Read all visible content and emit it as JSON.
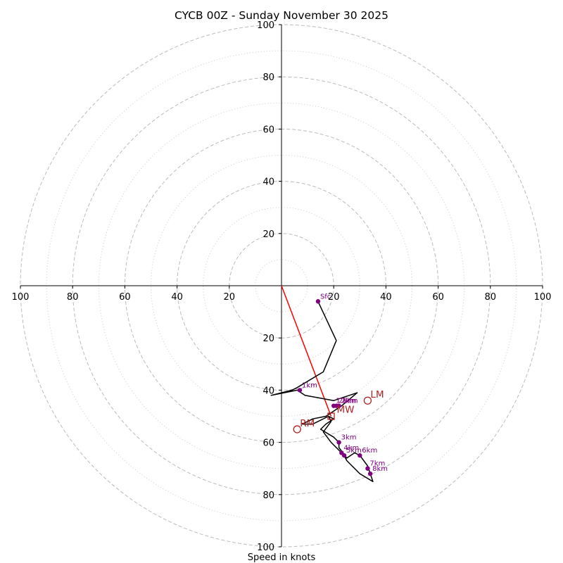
{
  "chart_data": {
    "type": "hodograph",
    "title": "CYCB 00Z - Sunday November 30 2025",
    "xlabel": "Speed in knots",
    "xlim": [
      -100,
      100
    ],
    "ylim": [
      -100,
      100
    ],
    "x_ticks": [
      "100",
      "80",
      "60",
      "40",
      "20",
      "20",
      "40",
      "60",
      "80",
      "100"
    ],
    "y_ticks": [
      "100",
      "80",
      "60",
      "40",
      "20",
      "20",
      "40",
      "60",
      "80",
      "100"
    ],
    "ring_major": [
      20,
      40,
      60,
      80,
      100
    ],
    "ring_minor": [
      10,
      30,
      50,
      70,
      90
    ],
    "hodograph_trace": [
      [
        14,
        -6
      ],
      [
        21,
        -21
      ],
      [
        16,
        -33
      ],
      [
        6,
        -39
      ],
      [
        4,
        -40
      ],
      [
        -4,
        -42
      ],
      [
        1,
        -41
      ],
      [
        6,
        -40
      ],
      [
        9,
        -42
      ],
      [
        20,
        -44
      ],
      [
        29,
        -41
      ],
      [
        23,
        -46
      ],
      [
        20,
        -48
      ],
      [
        17,
        -50
      ],
      [
        12,
        -51
      ],
      [
        8,
        -53
      ],
      [
        12,
        -53
      ],
      [
        18,
        -50
      ],
      [
        20,
        -51
      ],
      [
        17,
        -53
      ],
      [
        15,
        -55
      ],
      [
        20,
        -58
      ],
      [
        22,
        -60
      ],
      [
        22,
        -62
      ],
      [
        25,
        -66
      ],
      [
        28,
        -64
      ],
      [
        30,
        -65
      ],
      [
        33,
        -69
      ],
      [
        35,
        -75
      ],
      [
        30,
        -72
      ],
      [
        25,
        -67
      ],
      [
        24,
        -65
      ],
      [
        22,
        -63
      ],
      [
        19,
        -60
      ],
      [
        16,
        -56
      ],
      [
        19,
        -52
      ],
      [
        18,
        -50
      ]
    ],
    "height_markers": [
      {
        "label": "Sfc",
        "u": 14,
        "v": -6
      },
      {
        "label": "1km",
        "u": 7,
        "v": -40
      },
      {
        "label": "1.5km",
        "u": 20,
        "v": -46
      },
      {
        "label": "2km",
        "u": 21,
        "v": -46
      },
      {
        "label": "2km",
        "u": 22,
        "v": -46
      },
      {
        "label": "3km",
        "u": 22,
        "v": -60
      },
      {
        "label": "4km",
        "u": 23,
        "v": -64
      },
      {
        "label": "5km",
        "u": 24,
        "v": -65
      },
      {
        "label": "6km",
        "u": 30,
        "v": -65
      },
      {
        "label": "7km",
        "u": 33,
        "v": -70
      },
      {
        "label": "8km",
        "u": 34,
        "v": -72
      }
    ],
    "motion_markers": [
      {
        "label": "LM",
        "u": 33,
        "v": -44
      },
      {
        "label": "RM",
        "u": 6,
        "v": -55
      },
      {
        "label": "MW",
        "u": 19,
        "v": -50
      }
    ],
    "motion_vector": {
      "from": [
        0,
        0
      ],
      "to": [
        19,
        -50
      ]
    },
    "colors": {
      "trace": "#000000",
      "markers": "#800080",
      "motion": "#b22222",
      "vector": "#ff0000",
      "grid": "#bbbbbb"
    }
  }
}
